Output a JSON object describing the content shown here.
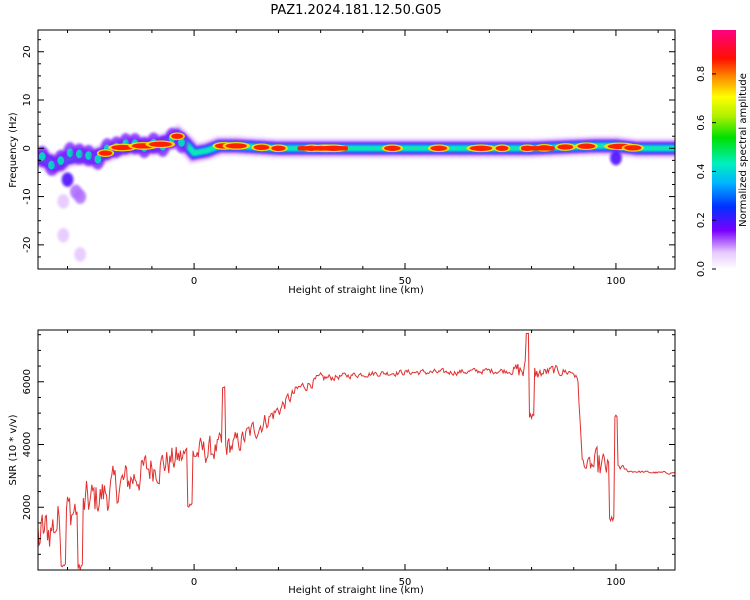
{
  "figure_title": "PAZ1.2024.181.12.50.G05",
  "chart_data": [
    {
      "type": "heatmap",
      "title": "PAZ1.2024.181.12.50.G05",
      "xlabel": "Height of straight line (km)",
      "ylabel": "Frequency (Hz)",
      "xlim": [
        -37,
        114
      ],
      "ylim": [
        -25,
        24.5
      ],
      "x_ticks": [
        0,
        50,
        100
      ],
      "y_ticks": [
        -20,
        -10,
        0,
        10,
        20
      ],
      "ridge": {
        "x": [
          -36,
          -33,
          -30,
          -27,
          -24,
          -21,
          -18,
          -15,
          -12,
          -9,
          -6,
          -4,
          -2,
          0,
          3,
          6,
          10,
          20,
          40,
          60,
          80,
          95,
          100,
          105,
          114
        ],
        "y": [
          -2,
          -3.5,
          -2,
          -1.5,
          -2,
          -1,
          0,
          0.5,
          0.5,
          0.5,
          1.5,
          2.5,
          1,
          -1,
          -0.5,
          0.5,
          0.5,
          0,
          0,
          0,
          0,
          0.5,
          0.5,
          0,
          0
        ]
      },
      "scatter_blobs": [
        {
          "x": -30,
          "y": -6.5,
          "level": 0.35
        },
        {
          "x": -28,
          "y": -9,
          "level": 0.2
        },
        {
          "x": -27,
          "y": -10,
          "level": 0.15
        },
        {
          "x": -31,
          "y": -11,
          "level": 0.1
        },
        {
          "x": -31,
          "y": -18,
          "level": 0.1
        },
        {
          "x": -27,
          "y": -22,
          "level": 0.1
        },
        {
          "x": 100,
          "y": -2,
          "level": 0.35
        }
      ],
      "colorbar": {
        "label": "Normalized spectral amplitude",
        "ticks": [
          "0.0",
          "0.2",
          "0.4",
          "0.6",
          "0.8"
        ],
        "tick_values": [
          0,
          0.2,
          0.4,
          0.6,
          0.8
        ],
        "range": [
          0,
          0.98
        ]
      }
    },
    {
      "type": "line",
      "xlabel": "Height of straight line (km)",
      "ylabel": "SNR (10 * v/v)",
      "xlim": [
        -37,
        114
      ],
      "ylim": [
        0,
        7650
      ],
      "x_ticks": [
        0,
        50,
        100
      ],
      "y_ticks": [
        2000,
        4000,
        6000
      ],
      "color": "#e0302f",
      "trend": {
        "x": [
          -37,
          -30,
          -20,
          -10,
          0,
          10,
          20,
          25,
          30,
          40,
          50,
          60,
          70,
          78,
          80,
          85,
          90,
          91,
          92,
          93,
          95,
          100,
          101,
          102,
          103,
          110,
          114
        ],
        "y": [
          1000,
          1800,
          2500,
          3300,
          3700,
          4000,
          5100,
          5800,
          6100,
          6250,
          6300,
          6300,
          6350,
          6350,
          6200,
          6350,
          6300,
          6000,
          3500,
          3300,
          3300,
          3200,
          3300,
          3200,
          3150,
          3100,
          3100
        ]
      },
      "noise_amplitude": {
        "x": [
          -37,
          -20,
          -5,
          10,
          25,
          35,
          75,
          78,
          82,
          90,
          92,
          96,
          102,
          103,
          114
        ],
        "a": [
          1300,
          1000,
          800,
          600,
          300,
          150,
          150,
          700,
          300,
          200,
          150,
          900,
          100,
          60,
          60
        ]
      },
      "dips": [
        {
          "x": -31,
          "y": 100
        },
        {
          "x": -27,
          "y": 0
        },
        {
          "x": -1,
          "y": 2000
        },
        {
          "x": 80,
          "y": 4800
        },
        {
          "x": 99,
          "y": 1500
        }
      ],
      "peaks": [
        {
          "x": 79,
          "y": 7600
        },
        {
          "x": 7,
          "y": 5900
        },
        {
          "x": 100,
          "y": 4950
        }
      ]
    }
  ]
}
